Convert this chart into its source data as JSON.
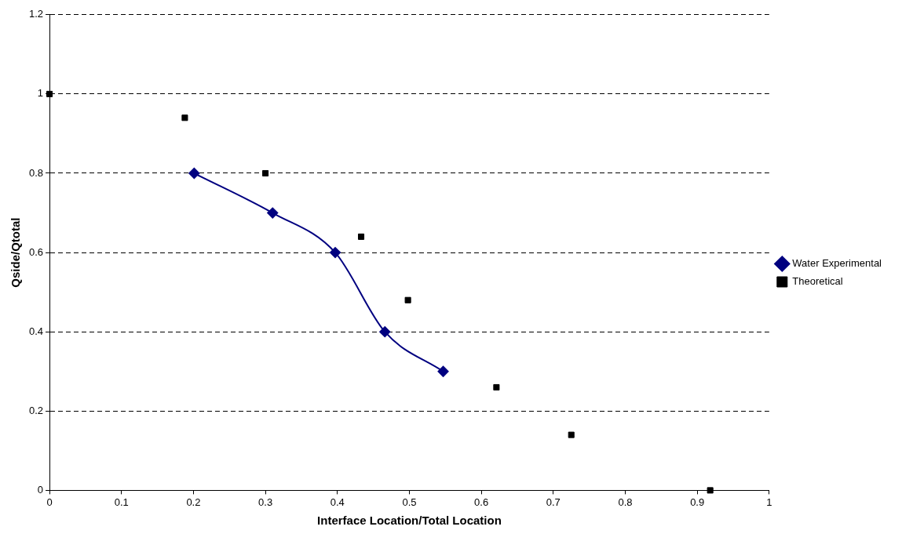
{
  "chart_data": {
    "type": "line",
    "xlabel": "Interface Location/Total Location",
    "ylabel": "Qside/Qtotal",
    "xlim": [
      0,
      1
    ],
    "xticks": [
      0,
      0.1,
      0.2,
      0.3,
      0.4,
      0.5,
      0.6,
      0.7,
      0.8,
      0.9,
      1
    ],
    "ylim": [
      0,
      1.2
    ],
    "yticks": [
      0,
      0.2,
      0.4,
      0.6,
      0.8,
      1,
      1.2
    ],
    "grid": "y",
    "legend": "right",
    "series": [
      {
        "name": "Water Experimental",
        "type": "line",
        "color": "#000080",
        "marker": "diamond",
        "line_style": "solid",
        "x": [
          0.201,
          0.31,
          0.397,
          0.466,
          0.547
        ],
        "values": [
          0.8,
          0.7,
          0.6,
          0.4,
          0.3
        ]
      },
      {
        "name": "Theoretical",
        "type": "scatter",
        "color": "#000000",
        "marker": "square",
        "x": [
          0,
          0.188,
          0.3,
          0.433,
          0.498,
          0.621,
          0.725,
          0.918
        ],
        "values": [
          1,
          0.94,
          0.8,
          0.64,
          0.48,
          0.26,
          0.14,
          0
        ]
      }
    ]
  }
}
